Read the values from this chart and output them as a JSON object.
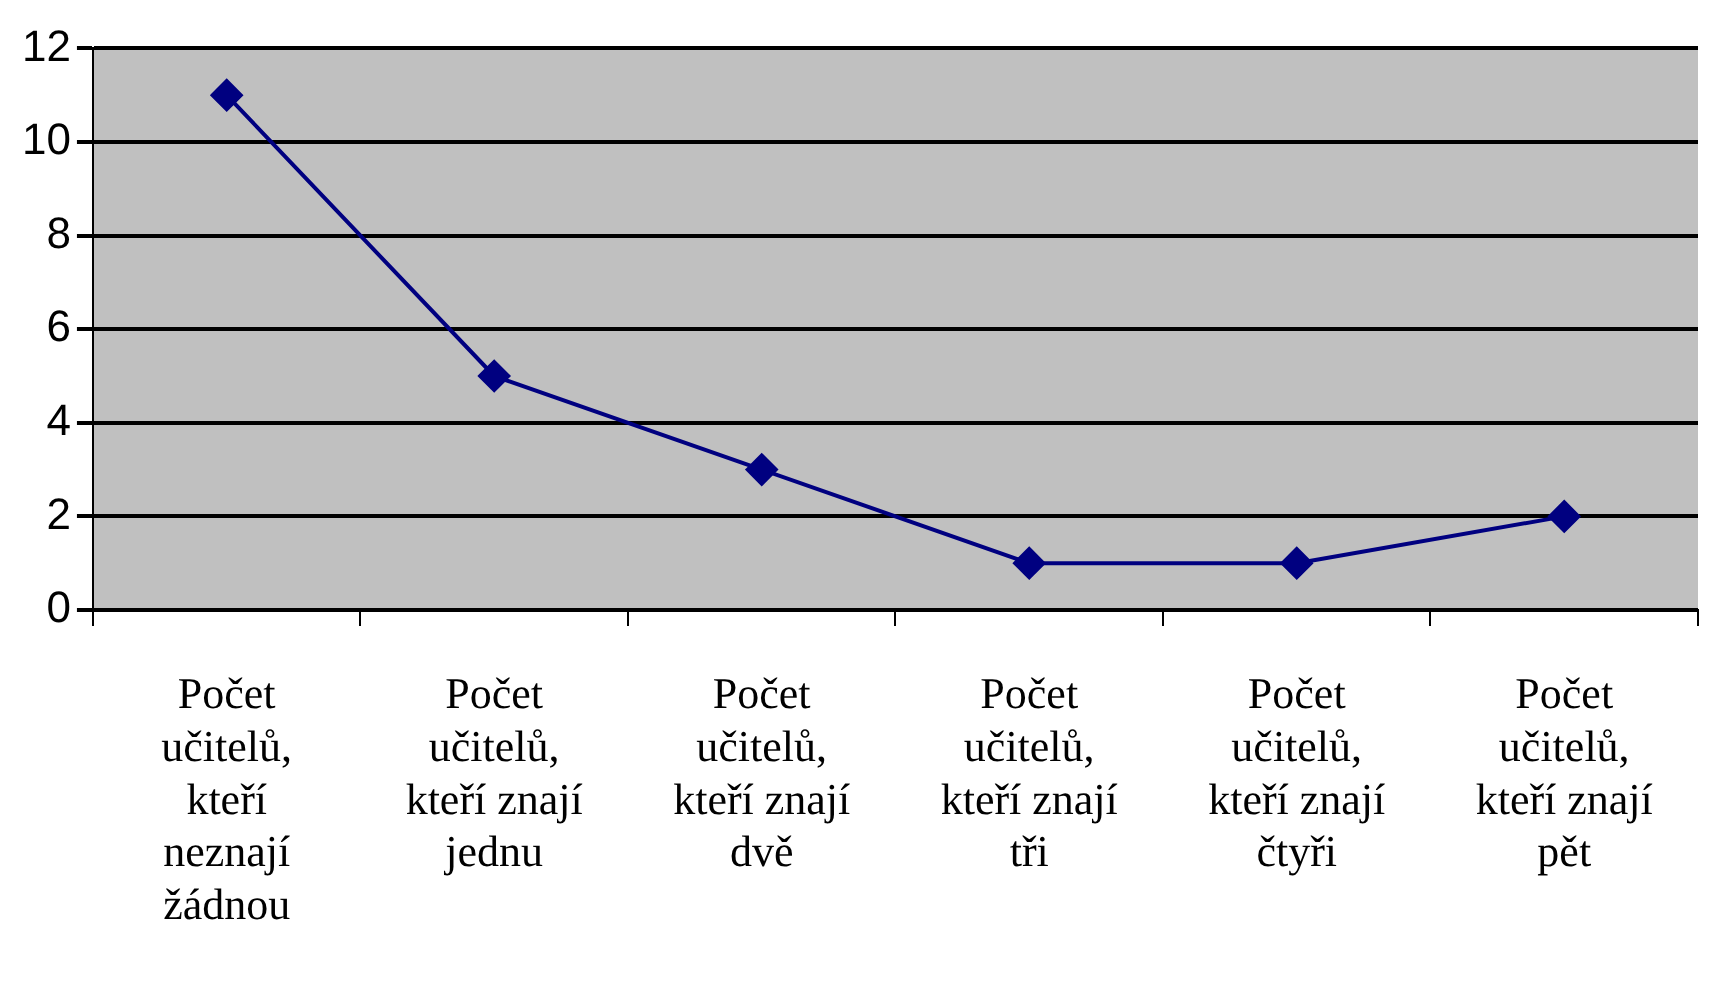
{
  "chart_data": {
    "type": "line",
    "categories": [
      "Počet učitelů, kteří neznají žádnou",
      "Počet učitelů, kteří znají jednu",
      "Počet učitelů, kteří znají dvě",
      "Počet učitelů, kteří znají tři",
      "Počet učitelů, kteří znají čtyři",
      "Počet učitelů, kteří znají pět"
    ],
    "series": [
      {
        "color": "#000080",
        "values": [
          11,
          5,
          3,
          1,
          1,
          2
        ]
      }
    ],
    "ylim": [
      0,
      12
    ],
    "yticks": [
      0,
      2,
      4,
      6,
      8,
      10,
      12
    ],
    "grid": "y",
    "legend": false,
    "marker": "diamond",
    "line_style": "solid"
  }
}
